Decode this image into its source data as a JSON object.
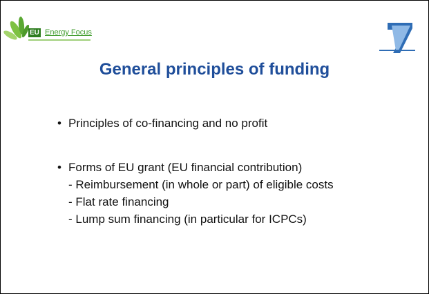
{
  "header": {
    "logo_badge": "EU",
    "logo_text": "Energy Focus"
  },
  "title": "General principles of funding",
  "bullets": [
    {
      "text": "Principles of co-financing and no profit",
      "sub": []
    },
    {
      "text": "Forms of EU grant (EU financial contribution)",
      "sub": [
        "- Reimbursement (in whole or part) of eligible costs",
        "- Flat rate financing",
        "- Lump sum financing (in particular for ICPCs)"
      ]
    }
  ]
}
